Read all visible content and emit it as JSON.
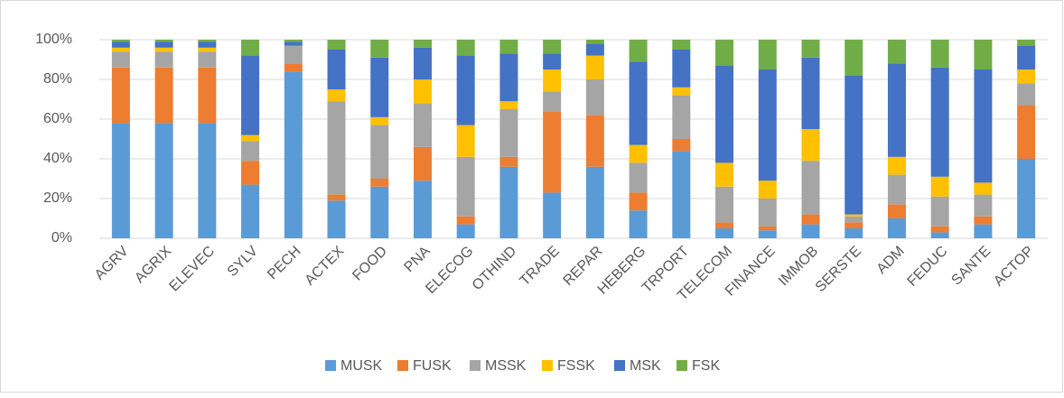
{
  "chart_data": {
    "type": "stacked_bar_100",
    "categories": [
      "AGRV",
      "AGRIX",
      "ELEVEC",
      "SYLV",
      "PECH",
      "ACTEX",
      "FOOD",
      "PNA",
      "ELECOG",
      "OTHIND",
      "TRADE",
      "REPAR",
      "HEBERG",
      "TRPORT",
      "TELECOM",
      "FINANCE",
      "IMMOB",
      "SERSTE",
      "ADM",
      "FEDUC",
      "SANTE",
      "ACTOP"
    ],
    "series": [
      {
        "name": "MUSK",
        "color": "#5b9bd5",
        "values": [
          58,
          58,
          58,
          27,
          84,
          19,
          26,
          29,
          7,
          36,
          23,
          36,
          14,
          44,
          5,
          4,
          7,
          5,
          10,
          3,
          7,
          40
        ]
      },
      {
        "name": "FUSK",
        "color": "#ed7d31",
        "values": [
          28,
          28,
          28,
          12,
          4,
          3,
          4,
          17,
          4,
          5,
          41,
          26,
          9,
          6,
          3,
          2,
          5,
          3,
          7,
          3,
          4,
          27
        ]
      },
      {
        "name": "MSSK",
        "color": "#a5a5a5",
        "values": [
          8,
          8,
          8,
          10,
          9,
          47,
          27,
          22,
          30,
          24,
          10,
          18,
          15,
          22,
          18,
          14,
          27,
          3,
          15,
          15,
          11,
          11
        ]
      },
      {
        "name": "FSSK",
        "color": "#ffc000",
        "values": [
          2,
          2,
          2,
          3,
          0,
          6,
          4,
          12,
          16,
          4,
          11,
          12,
          9,
          4,
          12,
          9,
          16,
          1,
          9,
          10,
          6,
          7
        ]
      },
      {
        "name": "MSK",
        "color": "#4472c4",
        "values": [
          3,
          3,
          3,
          40,
          2,
          20,
          30,
          16,
          35,
          24,
          8,
          6,
          42,
          19,
          49,
          56,
          36,
          70,
          47,
          55,
          57,
          12
        ]
      },
      {
        "name": "FSK",
        "color": "#70ad47",
        "values": [
          1,
          1,
          1,
          8,
          1,
          5,
          9,
          4,
          8,
          7,
          7,
          2,
          11,
          5,
          13,
          15,
          9,
          18,
          12,
          14,
          15,
          3
        ]
      }
    ],
    "ylim": [
      0,
      100
    ],
    "yticks": [
      {
        "value": 0,
        "label": "0%"
      },
      {
        "value": 20,
        "label": "20%"
      },
      {
        "value": 40,
        "label": "40%"
      },
      {
        "value": 60,
        "label": "60%"
      },
      {
        "value": 80,
        "label": "80%"
      },
      {
        "value": 100,
        "label": "100%"
      }
    ],
    "grid": true,
    "legend": "bottom"
  }
}
